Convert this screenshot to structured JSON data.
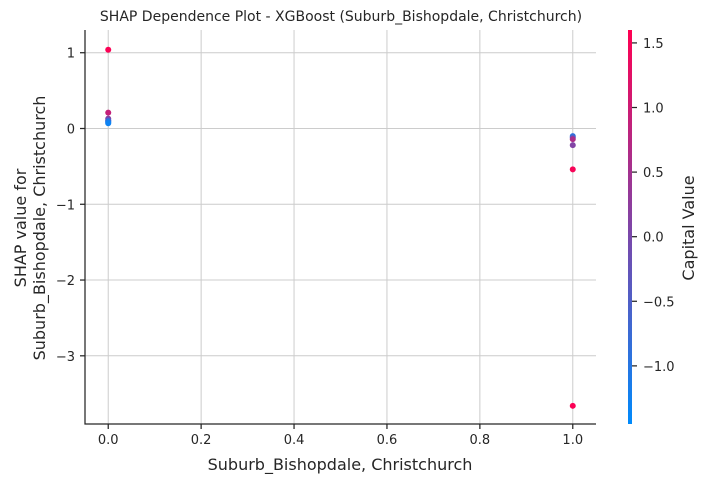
{
  "chart_data": {
    "type": "scatter",
    "title": "SHAP Dependence Plot - XGBoost (Suburb_Bishopdale, Christchurch)",
    "xlabel": "Suburb_Bishopdale, Christchurch",
    "ylabel_lines": [
      "SHAP value for",
      "Suburb_Bishopdale, Christchurch"
    ],
    "xlim": [
      -0.05,
      1.05
    ],
    "ylim": [
      -3.9,
      1.3
    ],
    "xticks": [
      0.0,
      0.2,
      0.4,
      0.6,
      0.8,
      1.0
    ],
    "xtick_labels": [
      "0.0",
      "0.2",
      "0.4",
      "0.6",
      "0.8",
      "1.0"
    ],
    "yticks": [
      1,
      0,
      -1,
      -2,
      -3
    ],
    "ytick_labels": [
      "1",
      "0",
      "−1",
      "−2",
      "−3"
    ],
    "grid": true,
    "points": [
      {
        "x": 0.0,
        "y": 1.04,
        "c": 1.55
      },
      {
        "x": 0.0,
        "y": 0.21,
        "c": 0.9
      },
      {
        "x": 0.0,
        "y": 0.13,
        "c": 0.2
      },
      {
        "x": 0.0,
        "y": 0.11,
        "c": -0.3
      },
      {
        "x": 0.0,
        "y": 0.1,
        "c": -0.6
      },
      {
        "x": 0.0,
        "y": 0.09,
        "c": -0.9
      },
      {
        "x": 0.0,
        "y": 0.08,
        "c": -1.1
      },
      {
        "x": 0.0,
        "y": 0.07,
        "c": -1.3
      },
      {
        "x": 1.0,
        "y": -0.1,
        "c": -0.9
      },
      {
        "x": 1.0,
        "y": -0.12,
        "c": -0.5
      },
      {
        "x": 1.0,
        "y": -0.14,
        "c": 0.6
      },
      {
        "x": 1.0,
        "y": -0.22,
        "c": 0.1
      },
      {
        "x": 1.0,
        "y": -0.54,
        "c": 1.5
      },
      {
        "x": 1.0,
        "y": -3.66,
        "c": 1.55
      }
    ],
    "colorbar": {
      "label": "Capital Value",
      "range": [
        -1.45,
        1.6
      ],
      "ticks": [
        1.5,
        1.0,
        0.5,
        0.0,
        -0.5,
        -1.0
      ],
      "tick_labels": [
        "1.5",
        "1.0",
        "0.5",
        "0.0",
        "−0.5",
        "−1.0"
      ],
      "colors": [
        "#008afb",
        "#ff0052"
      ]
    }
  }
}
